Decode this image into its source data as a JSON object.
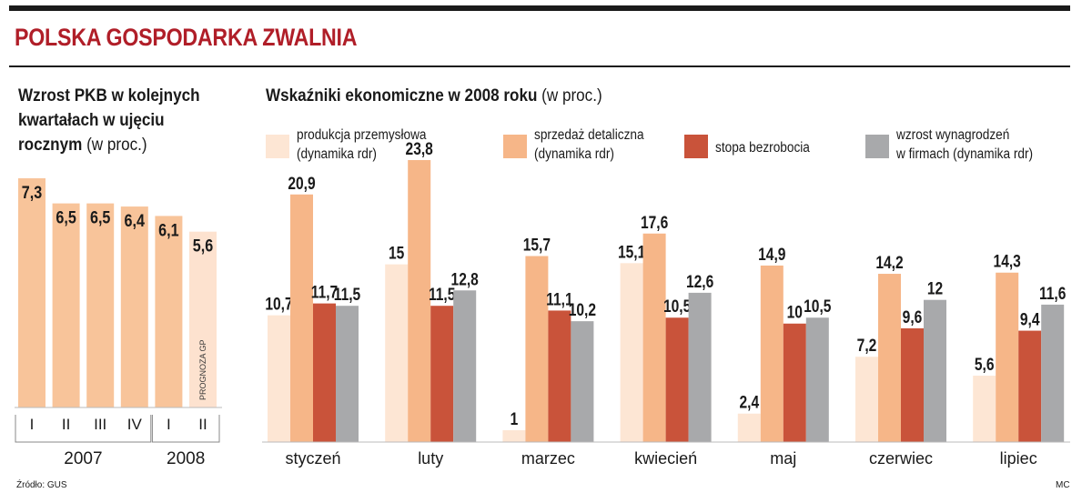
{
  "headline": "POLSKA GOSPODARKA ZWALNIA",
  "gdp_title_bold": "Wzrost PKB w kolejnych kwartałach w ujęciu rocznym",
  "gdp_title_unit": "(w proc.)",
  "indicators_title_bold": "Wskaźniki ekonomiczne w 2008 roku",
  "indicators_title_unit": "(w proc.)",
  "colors": {
    "gdp_bar": "#f8c49a",
    "gdp_forecast": "#fde2cf",
    "produkcja": "#fde6d4",
    "sprzedaz": "#f6b688",
    "bezrobocie": "#c9533a",
    "wynagrodzenia": "#a8a9ab"
  },
  "source": "Źródło: GUS",
  "credit": "MC",
  "chart_data": [
    {
      "type": "bar",
      "title": "Wzrost PKB w kolejnych kwartałach w ujęciu rocznym (w proc.)",
      "categories": [
        "I",
        "II",
        "III",
        "IV",
        "I",
        "II"
      ],
      "years": [
        {
          "label": "2007",
          "quarters": 4
        },
        {
          "label": "2008",
          "quarters": 2
        }
      ],
      "values": [
        7.3,
        6.5,
        6.5,
        6.4,
        6.1,
        5.6
      ],
      "labels": [
        "7,3",
        "6,5",
        "6,5",
        "6,4",
        "6,1",
        "5,6"
      ],
      "forecast_index": 5,
      "forecast_label": "PROGNOZA GP",
      "ylim": [
        0,
        7.3
      ]
    },
    {
      "type": "bar",
      "title": "Wskaźniki ekonomiczne w 2008 roku (w proc.)",
      "categories": [
        "styczeń",
        "luty",
        "marzec",
        "kwiecień",
        "maj",
        "czerwiec",
        "lipiec"
      ],
      "ylim": [
        0,
        23.8
      ],
      "series": [
        {
          "name": "produkcja przemysłowa (dynamika rdr)",
          "name_lines": [
            "produkcja przemysłowa",
            "(dynamika rdr)"
          ],
          "color_key": "produkcja",
          "values": [
            10.7,
            15,
            1,
            15.1,
            2.4,
            7.2,
            5.6
          ],
          "labels": [
            "10,7",
            "15",
            "1",
            "15,1",
            "2,4",
            "7,2",
            "5,6"
          ]
        },
        {
          "name": "sprzedaż detaliczna (dynamika rdr)",
          "name_lines": [
            "sprzedaż detaliczna",
            "(dynamika rdr)"
          ],
          "color_key": "sprzedaz",
          "values": [
            20.9,
            23.8,
            15.7,
            17.6,
            14.9,
            14.2,
            14.3
          ],
          "labels": [
            "20,9",
            "23,8",
            "15,7",
            "17,6",
            "14,9",
            "14,2",
            "14,3"
          ]
        },
        {
          "name": "stopa bezrobocia",
          "name_lines": [
            "stopa bezrobocia"
          ],
          "color_key": "bezrobocie",
          "values": [
            11.7,
            11.5,
            11.1,
            10.5,
            10,
            9.6,
            9.4
          ],
          "labels": [
            "11,7",
            "11,5",
            "11,1",
            "10,5",
            "10",
            "9,6",
            "9,4"
          ]
        },
        {
          "name": "wzrost wynagrodzeń w firmach (dynamika rdr)",
          "name_lines": [
            "wzrost wynagrodzeń",
            "w firmach (dynamika rdr)"
          ],
          "color_key": "wynagrodzenia",
          "values": [
            11.5,
            12.8,
            10.2,
            12.6,
            10.5,
            12,
            11.6
          ],
          "labels": [
            "11,5",
            "12,8",
            "10,2",
            "12,6",
            "10,5",
            "12",
            "11,6"
          ]
        }
      ]
    }
  ]
}
